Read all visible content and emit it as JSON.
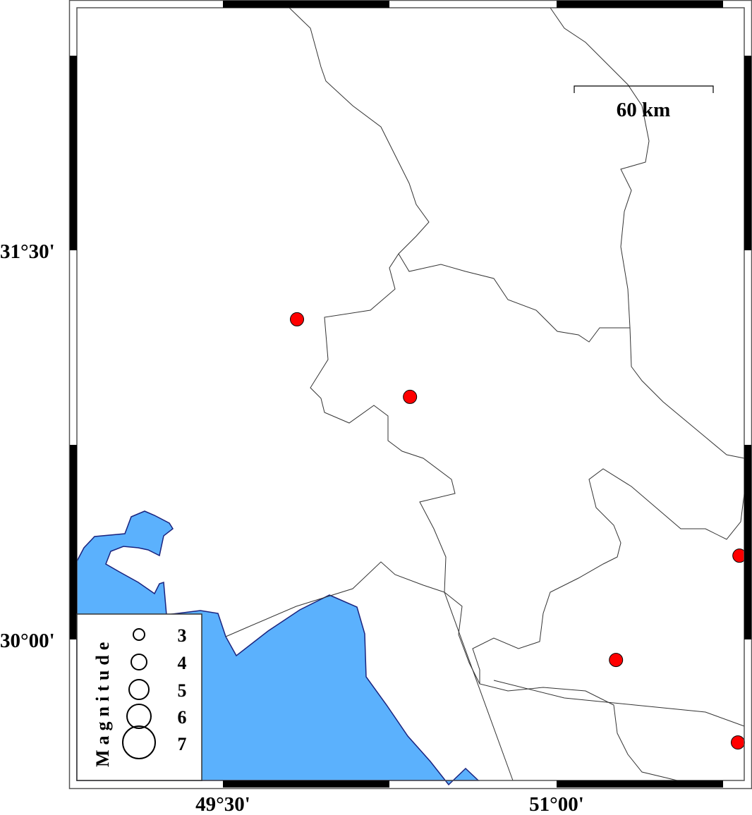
{
  "map": {
    "projection_extent": {
      "lon": [
        49.0,
        52.0
      ],
      "lat": [
        29.5,
        32.5
      ]
    },
    "colors": {
      "water": "#5bb1fd",
      "coastline": "#1a237e",
      "event": "#ff0000",
      "land": "#ffffff",
      "border": "#333333"
    },
    "x_tick_labels": [
      {
        "lon": 49.5,
        "label": "49°30'"
      },
      {
        "lon": 51.0,
        "label": "51°00'"
      }
    ],
    "y_tick_labels": [
      {
        "lat": 31.5,
        "label": "31°30'"
      },
      {
        "lat": 30.0,
        "label": "30°00'"
      }
    ],
    "scale_bar": {
      "label": "60 km"
    },
    "events": [
      {
        "lon": 49.833,
        "lat": 31.234
      },
      {
        "lon": 50.341,
        "lat": 30.935
      },
      {
        "lon": 51.822,
        "lat": 30.323
      },
      {
        "lon": 51.267,
        "lat": 29.921
      },
      {
        "lon": 51.815,
        "lat": 29.603
      }
    ],
    "legend": {
      "title": "Magnitude",
      "entries": [
        {
          "magnitude": "3"
        },
        {
          "magnitude": "4"
        },
        {
          "magnitude": "5"
        },
        {
          "magnitude": "6"
        },
        {
          "magnitude": "7"
        }
      ]
    }
  }
}
